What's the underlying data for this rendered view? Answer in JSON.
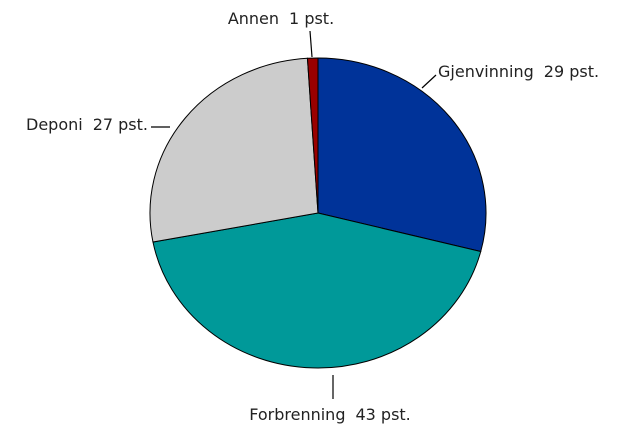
{
  "chart_data": {
    "type": "pie",
    "categories": [
      "Gjenvinning",
      "Forbrenning",
      "Deponi",
      "Annen"
    ],
    "values": [
      29,
      43,
      27,
      1
    ],
    "value_labels": [
      "29 pst.",
      "43 pst.",
      "27 pst.",
      "1 pst."
    ],
    "colors": [
      "#003399",
      "#009999",
      "#cccccc",
      "#990000"
    ]
  }
}
